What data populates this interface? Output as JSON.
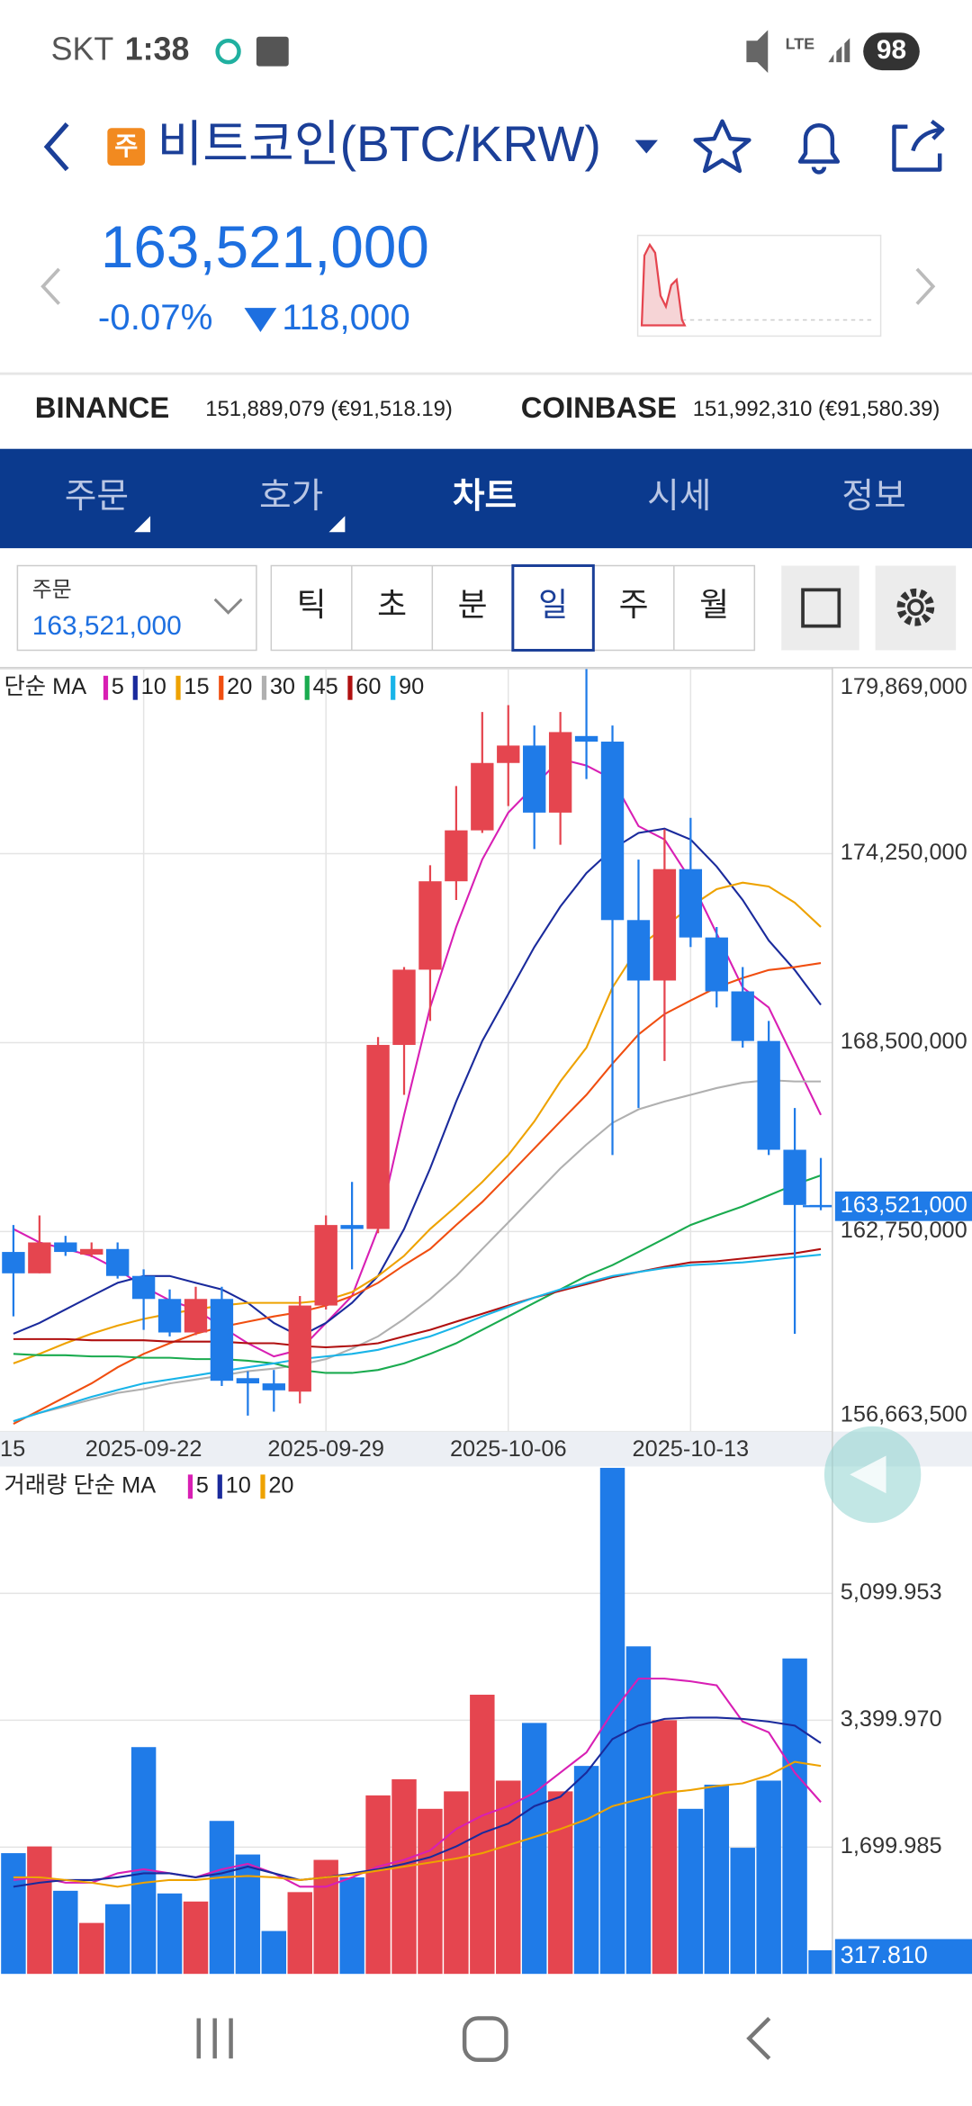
{
  "status_bar": {
    "carrier": "SKT",
    "time": "1:38",
    "network": "LTE",
    "battery": "98"
  },
  "header": {
    "badge": "주",
    "title": "비트코인(BTC/KRW)"
  },
  "quote": {
    "price": "163,521,000",
    "change_rate": "-0.07%",
    "change": "118,000"
  },
  "exchanges": [
    {
      "name": "BINANCE",
      "price": "151,889,079 (€91,518.19)"
    },
    {
      "name": "COINBASE",
      "price": "151,992,310 (€91,580.39)"
    }
  ],
  "tabs": [
    "주문",
    "호가",
    "차트",
    "시세",
    "정보"
  ],
  "order_box": {
    "label": "주문",
    "price": "163,521,000"
  },
  "periods": [
    "틱",
    "초",
    "분",
    "일",
    "주",
    "월"
  ],
  "chart_data": [
    {
      "type": "candlestick",
      "legend_title": "단순 MA",
      "categories": [
        null,
        null,
        null,
        null,
        null,
        "2025-09-22",
        null,
        null,
        null,
        null,
        null,
        null,
        "2025-09-29",
        null,
        null,
        null,
        null,
        null,
        null,
        "2025-10-06",
        null,
        null,
        null,
        null,
        null,
        null,
        "2025-10-13",
        null,
        null,
        null,
        null,
        null
      ],
      "clipped_x_label": "15",
      "open": [
        162130000,
        161480000,
        162420000,
        162050000,
        162220000,
        161400000,
        160700000,
        159680000,
        160700000,
        158290000,
        158130000,
        157880000,
        160500000,
        162950000,
        162830000,
        168430000,
        170720000,
        173410000,
        174960000,
        177010000,
        177540000,
        175500000,
        177830000,
        177660000,
        172230000,
        170390000,
        173780000,
        171700000,
        170060000,
        168550000,
        165240000,
        163560000
      ],
      "high": [
        162950000,
        163240000,
        162620000,
        162420000,
        162420000,
        161600000,
        160990000,
        161070000,
        161070000,
        158500000,
        158540000,
        160790000,
        163240000,
        164260000,
        168670000,
        170800000,
        173900000,
        176310000,
        178560000,
        178770000,
        178150000,
        178560000,
        179869000,
        178150000,
        174070000,
        174990000,
        175340000,
        172020000,
        170800000,
        169160000,
        166510000,
        164990000
      ],
      "low": [
        160170000,
        161480000,
        162010000,
        161970000,
        161320000,
        159760000,
        159560000,
        159600000,
        158050000,
        157150000,
        157270000,
        157520000,
        160380000,
        161600000,
        162700000,
        166910000,
        169160000,
        172840000,
        174880000,
        175700000,
        174390000,
        174520000,
        176520000,
        165080000,
        166510000,
        167940000,
        171410000,
        169570000,
        168350000,
        165080000,
        159640000,
        163400000
      ],
      "close": [
        161480000,
        162420000,
        162130000,
        162220000,
        161400000,
        160700000,
        159680000,
        160700000,
        158210000,
        158130000,
        157920000,
        160500000,
        162950000,
        162830000,
        168430000,
        170720000,
        173410000,
        174960000,
        177010000,
        177540000,
        175500000,
        177950000,
        177660000,
        172230000,
        170390000,
        173780000,
        171700000,
        170060000,
        168550000,
        165240000,
        163560000,
        163521000
      ],
      "up_color": "#e5454f",
      "down_color": "#1f7be8",
      "ylim": [
        156663500,
        179869000
      ],
      "yticks": [
        {
          "value": 156663500,
          "label": "156,663,500"
        },
        {
          "value": 162750000,
          "label": "162,750,000"
        },
        {
          "value": 168500000,
          "label": "168,500,000"
        },
        {
          "value": 174250000,
          "label": "174,250,000"
        },
        {
          "value": 179869000,
          "label": "179,869,000"
        }
      ],
      "grid": true,
      "current": {
        "value": 163521000,
        "label": "163,521,000"
      },
      "ma_series": [
        {
          "name": "5",
          "color": "#d81fb4",
          "values": [
            162830000,
            162420000,
            162220000,
            162010000,
            161600000,
            161070000,
            160660000,
            160380000,
            159850000,
            159350000,
            158950000,
            159150000,
            159970000,
            160790000,
            162830000,
            166300000,
            169570000,
            172020000,
            174070000,
            175500000,
            176310000,
            177130000,
            176930000,
            176520000,
            175090000,
            174680000,
            173450000,
            171820000,
            170180000,
            169570000,
            167940000,
            166300000
          ]
        },
        {
          "name": "10",
          "color": "#1a2a9c",
          "values": [
            159640000,
            159970000,
            160380000,
            160790000,
            161190000,
            161400000,
            161400000,
            161190000,
            160990000,
            160580000,
            159970000,
            159560000,
            159970000,
            160580000,
            161400000,
            162830000,
            164670000,
            166710000,
            168550000,
            169980000,
            171410000,
            172640000,
            173660000,
            174390000,
            174880000,
            175010000,
            174680000,
            173860000,
            172840000,
            171610000,
            170710000,
            169650000
          ]
        },
        {
          "name": "15",
          "color": "#eea200",
          "values": [
            158740000,
            159030000,
            159350000,
            159640000,
            159890000,
            160090000,
            160250000,
            160380000,
            160500000,
            160580000,
            160580000,
            160580000,
            160660000,
            160910000,
            161400000,
            162010000,
            162830000,
            163520000,
            164260000,
            165080000,
            166100000,
            167320000,
            168350000,
            170180000,
            171410000,
            172020000,
            172640000,
            173170000,
            173370000,
            173250000,
            172760000,
            172020000
          ]
        },
        {
          "name": "20",
          "color": "#f04e10",
          "values": [
            156900000,
            157310000,
            157720000,
            158130000,
            158620000,
            159030000,
            159350000,
            159640000,
            159850000,
            160010000,
            160170000,
            160300000,
            160500000,
            160790000,
            161190000,
            161730000,
            162220000,
            162950000,
            163650000,
            164460000,
            165280000,
            166100000,
            166910000,
            167860000,
            168750000,
            169370000,
            169780000,
            170180000,
            170470000,
            170710000,
            170800000,
            170920000
          ]
        },
        {
          "name": "30",
          "color": "#b0b0b0",
          "values": [
            156980000,
            157230000,
            157430000,
            157640000,
            157840000,
            157960000,
            158130000,
            158250000,
            158370000,
            158500000,
            158580000,
            158700000,
            158870000,
            159190000,
            159560000,
            160090000,
            160700000,
            161400000,
            162220000,
            163030000,
            163850000,
            164670000,
            165400000,
            166060000,
            166470000,
            166710000,
            166910000,
            167120000,
            167280000,
            167360000,
            167320000,
            167320000
          ]
        },
        {
          "name": "45",
          "color": "#1aab4f",
          "values": [
            159030000,
            158990000,
            158990000,
            158950000,
            158950000,
            158910000,
            158910000,
            158870000,
            158870000,
            158820000,
            158740000,
            158540000,
            158450000,
            158450000,
            158540000,
            158740000,
            159030000,
            159350000,
            159760000,
            160170000,
            160580000,
            160990000,
            161400000,
            161730000,
            162130000,
            162540000,
            162950000,
            163240000,
            163520000,
            163850000,
            164180000,
            164460000
          ]
        },
        {
          "name": "60",
          "color": "#b01010",
          "values": [
            159480000,
            159480000,
            159480000,
            159440000,
            159440000,
            159440000,
            159400000,
            159400000,
            159400000,
            159350000,
            159350000,
            159270000,
            159230000,
            159270000,
            159350000,
            159560000,
            159760000,
            160010000,
            160250000,
            160500000,
            160740000,
            160950000,
            161150000,
            161360000,
            161520000,
            161680000,
            161810000,
            161850000,
            161930000,
            162010000,
            162090000,
            162220000
          ]
        },
        {
          "name": "90",
          "color": "#19b4e8",
          "values": [
            156980000,
            157230000,
            157480000,
            157720000,
            157930000,
            158130000,
            158250000,
            158370000,
            158500000,
            158620000,
            158740000,
            158870000,
            158950000,
            159030000,
            159150000,
            159350000,
            159560000,
            159850000,
            160170000,
            160460000,
            160740000,
            160990000,
            161190000,
            161400000,
            161520000,
            161640000,
            161730000,
            161770000,
            161810000,
            161890000,
            161970000,
            162050000
          ]
        }
      ]
    },
    {
      "type": "bar",
      "legend_title": "거래량 단순 MA",
      "values": [
        1619,
        1709,
        1115,
        684,
        935,
        3040,
        1079,
        971,
        2051,
        1601,
        576,
        1097,
        1529,
        1295,
        2393,
        2609,
        2213,
        2447,
        3742,
        2591,
        3364,
        2447,
        2788,
        6782,
        4390,
        3400,
        2213,
        2537,
        1691,
        2591,
        4228,
        317.81
      ],
      "colors": [
        "#1f7be8",
        "#e5454f",
        "#1f7be8",
        "#e5454f",
        "#1f7be8",
        "#1f7be8",
        "#1f7be8",
        "#e5454f",
        "#1f7be8",
        "#1f7be8",
        "#1f7be8",
        "#e5454f",
        "#e5454f",
        "#1f7be8",
        "#e5454f",
        "#e5454f",
        "#e5454f",
        "#e5454f",
        "#e5454f",
        "#e5454f",
        "#1f7be8",
        "#e5454f",
        "#1f7be8",
        "#1f7be8",
        "#1f7be8",
        "#e5454f",
        "#1f7be8",
        "#1f7be8",
        "#1f7be8",
        "#1f7be8",
        "#1f7be8",
        "#1f7be8"
      ],
      "ylim": [
        0,
        6800
      ],
      "yticks": [
        {
          "value": 1699.985,
          "label": "1,699.985"
        },
        {
          "value": 3399.97,
          "label": "3,399.970"
        },
        {
          "value": 5099.953,
          "label": "5,099.953"
        }
      ],
      "grid": true,
      "current": {
        "value": 317.81,
        "label": "317.810"
      },
      "ma_series": [
        {
          "name": "5",
          "color": "#d81fb4",
          "values": [
            1259,
            1295,
            1223,
            1223,
            1349,
            1403,
            1349,
            1295,
            1403,
            1475,
            1349,
            1169,
            1169,
            1295,
            1439,
            1529,
            1655,
            1943,
            2123,
            2249,
            2429,
            2699,
            2968,
            3508,
            3958,
            3958,
            3922,
            3868,
            3382,
            3238,
            2699,
            2303
          ]
        },
        {
          "name": "10",
          "color": "#1a2a9c",
          "values": [
            1169,
            1223,
            1259,
            1259,
            1295,
            1349,
            1349,
            1295,
            1349,
            1439,
            1349,
            1259,
            1295,
            1349,
            1403,
            1475,
            1565,
            1709,
            1889,
            2015,
            2249,
            2375,
            2699,
            3148,
            3328,
            3418,
            3436,
            3436,
            3418,
            3382,
            3328,
            3094
          ]
        },
        {
          "name": "20",
          "color": "#eea200",
          "values": [
            1295,
            1295,
            1259,
            1223,
            1169,
            1223,
            1259,
            1259,
            1295,
            1313,
            1295,
            1259,
            1295,
            1331,
            1385,
            1439,
            1493,
            1547,
            1619,
            1727,
            1835,
            1943,
            2069,
            2249,
            2339,
            2429,
            2465,
            2519,
            2555,
            2663,
            2842,
            2788
          ]
        }
      ]
    }
  ]
}
